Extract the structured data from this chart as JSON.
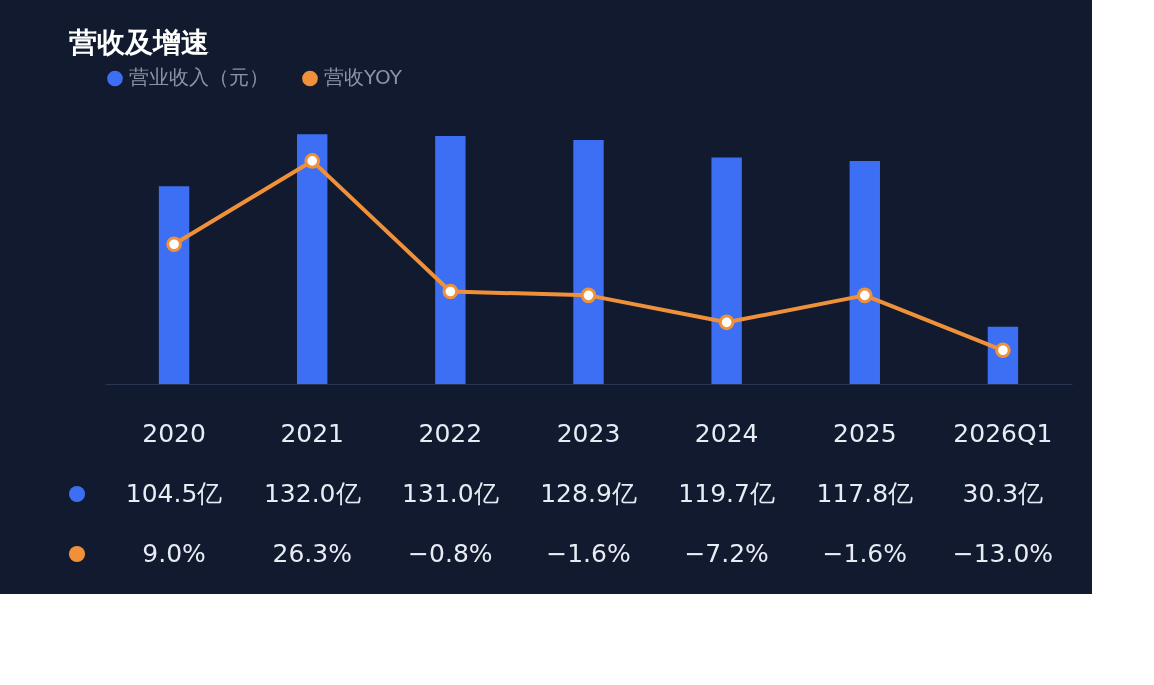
{
  "chart_data": {
    "type": "bar",
    "title": "营收及增速",
    "categories": [
      "2020",
      "2021",
      "2022",
      "2023",
      "2024",
      "2025",
      "2026Q1"
    ],
    "series": [
      {
        "name": "营业收入（元）",
        "color": "#3d6ff5",
        "values": [
          104.5,
          132.0,
          131.0,
          128.9,
          119.7,
          117.8,
          30.3
        ],
        "value_labels": [
          "104.5亿",
          "132.0亿",
          "131.0亿",
          "128.9亿",
          "119.7亿",
          "117.8亿",
          "30.3亿"
        ]
      },
      {
        "name": "营收YOY",
        "type": "line",
        "axis": "y2",
        "color": "#f0913a",
        "values": [
          9.0,
          26.3,
          -0.8,
          -1.6,
          -7.2,
          -1.6,
          -13.0
        ],
        "value_labels": [
          "9.0%",
          "26.3%",
          "−0.8%",
          "−1.6%",
          "−7.2%",
          "−1.6%",
          "−13.0%"
        ]
      }
    ],
    "tick_labels": false,
    "legend": "top left",
    "marker": "circle"
  }
}
